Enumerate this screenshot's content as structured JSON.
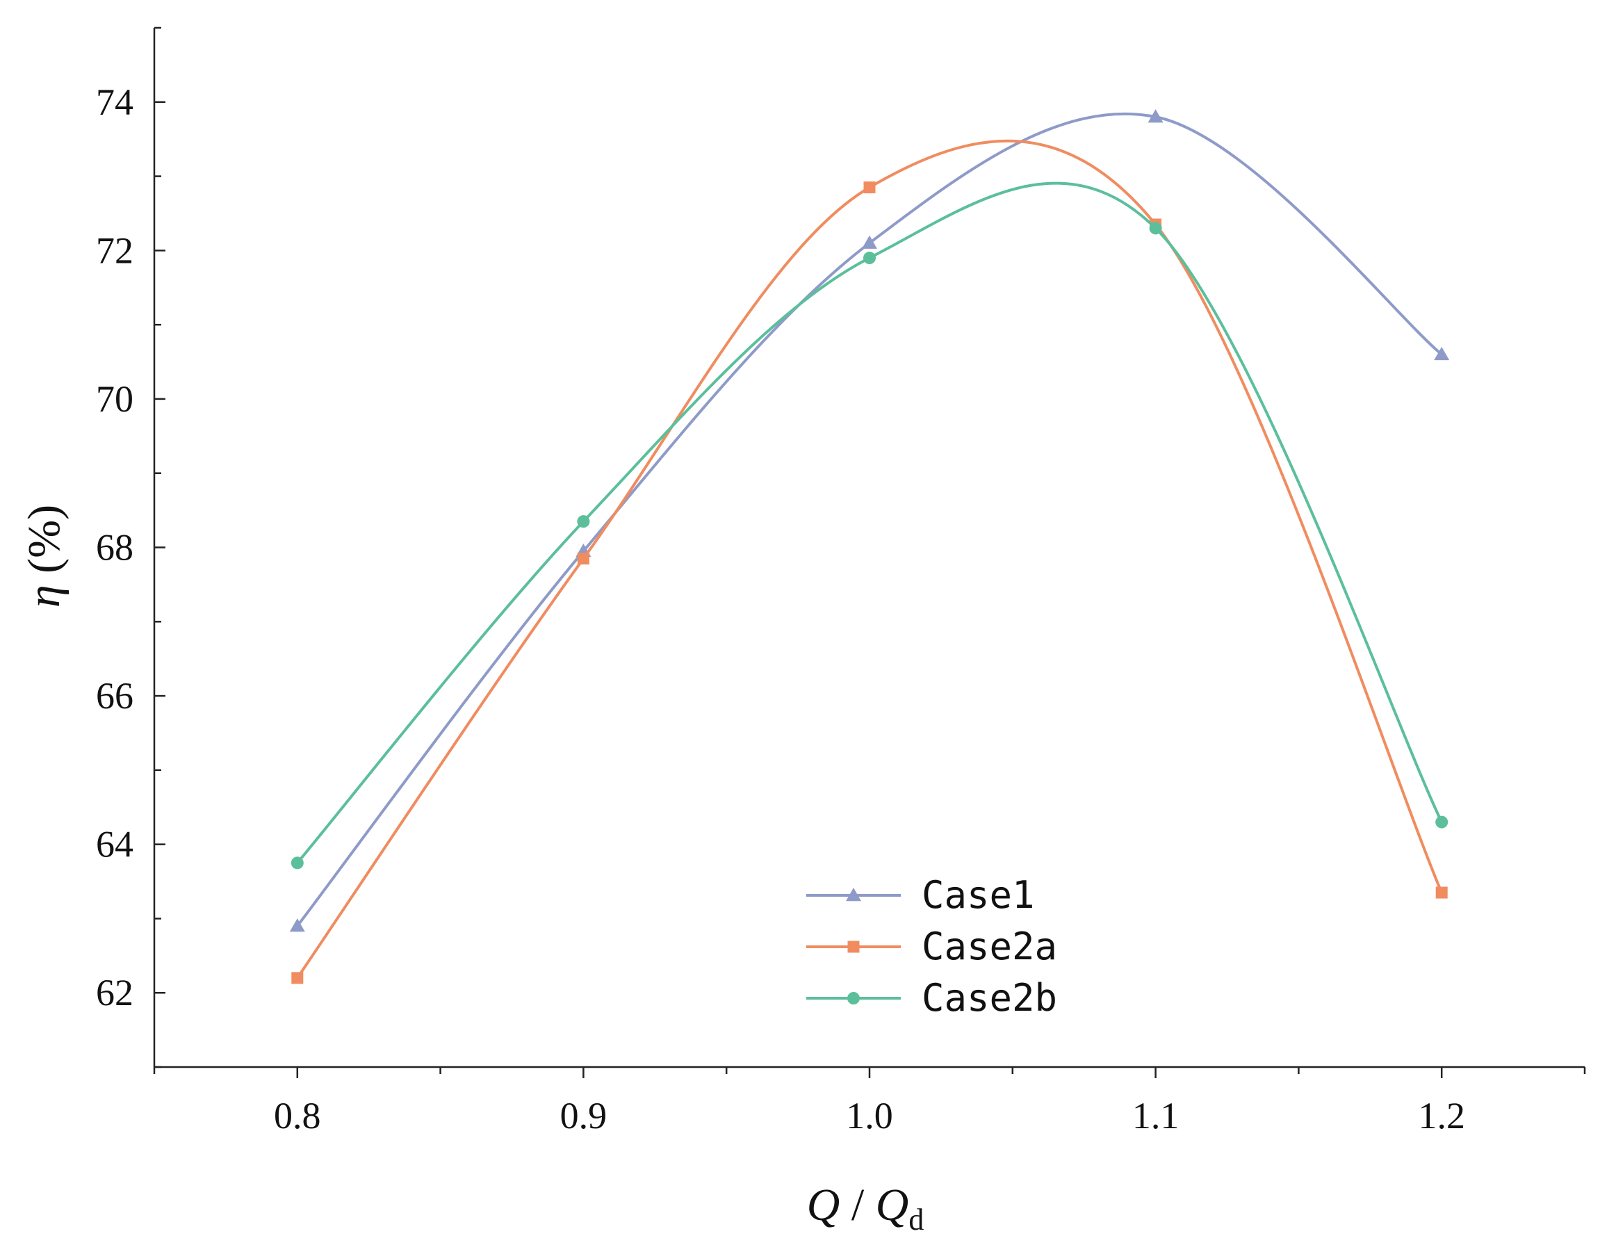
{
  "chart_data": {
    "type": "line",
    "title": "",
    "xlabel": {
      "var": "Q",
      "sep": " / ",
      "var2": "Q",
      "sub": "d"
    },
    "ylabel": {
      "var": "η",
      "unit": " (%)"
    },
    "xlim": [
      0.75,
      1.25
    ],
    "ylim": [
      61,
      75
    ],
    "x_ticks": [
      "0.8",
      "0.9",
      "1.0",
      "1.1",
      "1.2"
    ],
    "y_ticks": [
      "62",
      "64",
      "66",
      "68",
      "70",
      "72",
      "74"
    ],
    "legend_position": "bottom-center",
    "series": [
      {
        "name": "Case1",
        "marker": "triangle",
        "color": "#8E9BC9",
        "x": [
          0.8,
          0.9,
          1.0,
          1.1,
          1.2
        ],
        "values": [
          62.9,
          67.95,
          72.1,
          73.8,
          70.6
        ]
      },
      {
        "name": "Case2a",
        "marker": "square",
        "color": "#F08C60",
        "x": [
          0.8,
          0.9,
          1.0,
          1.1,
          1.2
        ],
        "values": [
          62.2,
          67.85,
          72.85,
          72.35,
          63.35
        ]
      },
      {
        "name": "Case2b",
        "marker": "circle",
        "color": "#5BBF9B",
        "x": [
          0.8,
          0.9,
          1.0,
          1.1,
          1.2
        ],
        "values": [
          63.75,
          68.35,
          71.9,
          72.3,
          64.3
        ]
      }
    ]
  }
}
